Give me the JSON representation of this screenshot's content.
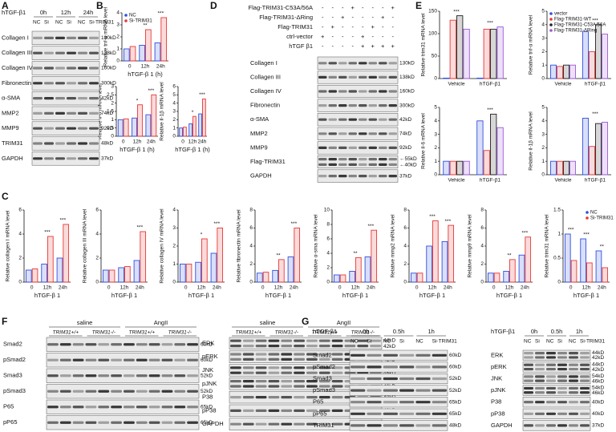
{
  "panel_labels": [
    "A",
    "B",
    "C",
    "D",
    "E",
    "F",
    "G"
  ],
  "chart_data": [
    {
      "type": "bar",
      "ylabel": "Relative tnf-α mRNA level",
      "xlabel": "hTGF-β 1 (h)",
      "categories": [
        "0",
        "12h",
        "24h"
      ],
      "ylim": [
        0,
        4
      ],
      "yticks": [
        0,
        1,
        2,
        3,
        4
      ],
      "legend": "upper left",
      "series": [
        {
          "name": "NC",
          "color": "#2f4fe0",
          "values": [
            1,
            1.3,
            1.5
          ]
        },
        {
          "name": "Si-TRIM31",
          "color": "#e53935",
          "values": [
            1.2,
            2.6,
            3.6
          ]
        }
      ],
      "annotations": [
        null,
        "**",
        "***"
      ]
    },
    {
      "type": "bar",
      "ylabel": "Relative il-6 mRNA level",
      "xlabel": "hTGF-β 1 (h)",
      "categories": [
        "0",
        "12h",
        "24h"
      ],
      "ylim": [
        0,
        3
      ],
      "yticks": [
        0,
        0.5,
        1,
        1.5,
        2,
        2.5,
        3
      ],
      "series": [
        {
          "color": "#2f4fe0",
          "values": [
            1,
            1.1,
            1.3
          ]
        },
        {
          "color": "#e53935",
          "values": [
            1.05,
            1.9,
            2.5
          ]
        }
      ],
      "annotations": [
        null,
        "*",
        "***"
      ]
    },
    {
      "type": "bar",
      "ylabel": "Relative il-1β mRNA level",
      "xlabel": "hTGF-β 1 (h)",
      "categories": [
        "0",
        "12h",
        "24h"
      ],
      "ylim": [
        0,
        6
      ],
      "yticks": [
        0,
        1,
        2,
        3,
        4,
        5,
        6
      ],
      "series": [
        {
          "color": "#2f4fe0",
          "values": [
            1,
            1.5,
            2.7
          ]
        },
        {
          "color": "#e53935",
          "values": [
            1.1,
            2.4,
            4.5
          ]
        }
      ],
      "annotations": [
        null,
        "*",
        "***"
      ]
    },
    {
      "type": "bar",
      "ylabel": "Relative collagen I mRNA level",
      "xlabel": "hTGF-β 1",
      "categories": [
        "0",
        "12h",
        "24h"
      ],
      "ylim": [
        0,
        6
      ],
      "yticks": [
        0,
        2,
        4,
        6
      ],
      "series": [
        {
          "color": "#2f4fe0",
          "values": [
            1,
            1.5,
            2
          ]
        },
        {
          "color": "#e53935",
          "values": [
            1.1,
            3.8,
            4.8
          ]
        }
      ],
      "annotations": [
        null,
        "***",
        "***"
      ]
    },
    {
      "type": "bar",
      "ylabel": "Relative collagen III mRNA level",
      "xlabel": "hTGF-β 1",
      "categories": [
        "0",
        "12h",
        "24h"
      ],
      "ylim": [
        0,
        6
      ],
      "yticks": [
        0,
        2,
        4,
        6
      ],
      "series": [
        {
          "color": "#2f4fe0",
          "values": [
            1,
            1.2,
            1.8
          ]
        },
        {
          "color": "#e53935",
          "values": [
            1,
            1.3,
            4.2
          ]
        }
      ],
      "annotations": [
        null,
        null,
        "***"
      ]
    },
    {
      "type": "bar",
      "ylabel": "Relative collagen IV mRNA level",
      "xlabel": "hTGF-β 1",
      "categories": [
        "0",
        "12h",
        "24h"
      ],
      "ylim": [
        0,
        4
      ],
      "yticks": [
        0,
        1,
        2,
        3,
        4
      ],
      "series": [
        {
          "color": "#2f4fe0",
          "values": [
            1,
            1.1,
            1.6
          ]
        },
        {
          "color": "#e53935",
          "values": [
            1,
            2.4,
            3
          ]
        }
      ],
      "annotations": [
        null,
        "*",
        "***"
      ]
    },
    {
      "type": "bar",
      "ylabel": "Relative fibronectin mRNA level",
      "xlabel": "hTGF-β 1",
      "categories": [
        "0",
        "12h",
        "24h"
      ],
      "ylim": [
        0,
        8
      ],
      "yticks": [
        0,
        2,
        4,
        6,
        8
      ],
      "series": [
        {
          "color": "#2f4fe0",
          "values": [
            1,
            1.3,
            2.8
          ]
        },
        {
          "color": "#e53935",
          "values": [
            1.1,
            2.5,
            6
          ]
        }
      ],
      "annotations": [
        null,
        "**",
        "***"
      ]
    },
    {
      "type": "bar",
      "ylabel": "Relative α-sma mRNA level",
      "xlabel": "hTGF-β 1",
      "categories": [
        "0",
        "12h",
        "24h"
      ],
      "ylim": [
        0,
        10
      ],
      "yticks": [
        0,
        2,
        4,
        6,
        8,
        10
      ],
      "series": [
        {
          "color": "#2f4fe0",
          "values": [
            1,
            1.5,
            3.5
          ]
        },
        {
          "color": "#e53935",
          "values": [
            1,
            3.4,
            7.2
          ]
        }
      ],
      "annotations": [
        null,
        "**",
        "***"
      ]
    },
    {
      "type": "bar",
      "ylabel": "Relative mmp2 mRNA level",
      "xlabel": "hTGF-β 1",
      "categories": [
        "0",
        "12h",
        "24h"
      ],
      "ylim": [
        0,
        8
      ],
      "yticks": [
        0,
        2,
        4,
        6,
        8
      ],
      "series": [
        {
          "color": "#2f4fe0",
          "values": [
            1,
            4,
            4.5
          ]
        },
        {
          "color": "#e53935",
          "values": [
            1,
            6.8,
            6.3
          ]
        }
      ],
      "annotations": [
        null,
        "***",
        "***"
      ]
    },
    {
      "type": "bar",
      "ylabel": "Relative mmp9 mRNA level",
      "xlabel": "hTGF-β 1",
      "categories": [
        "0",
        "12h",
        "24h"
      ],
      "ylim": [
        0,
        8
      ],
      "yticks": [
        0,
        2,
        4,
        6,
        8
      ],
      "series": [
        {
          "color": "#2f4fe0",
          "values": [
            1,
            1.2,
            3
          ]
        },
        {
          "color": "#e53935",
          "values": [
            1,
            2.5,
            5
          ]
        }
      ],
      "annotations": [
        null,
        "**",
        "***"
      ]
    },
    {
      "type": "bar",
      "ylabel": "Relative trim31 mRNA level",
      "xlabel": "hTGF-β 1",
      "categories": [
        "0",
        "12h",
        "24h"
      ],
      "ylim": [
        0,
        1.5
      ],
      "yticks": [
        0,
        0.5,
        1,
        1.5
      ],
      "legend": "upper right",
      "series": [
        {
          "name": "NC",
          "color": "#2f4fe0",
          "values": [
            1,
            0.9,
            0.65
          ]
        },
        {
          "name": "Si-TRIM31",
          "color": "#e53935",
          "values": [
            0.45,
            0.4,
            0.3
          ]
        }
      ],
      "annotations": [
        "***",
        "***",
        "**"
      ]
    },
    {
      "type": "bar",
      "ylabel": "Relative trim31 mRNA level",
      "categories": [
        "Vehicle",
        "hTGF-β1"
      ],
      "ylim": [
        0,
        150
      ],
      "yticks": [
        0,
        50,
        100,
        150
      ],
      "series": [
        {
          "color": "#2f4fe0",
          "values": [
            1,
            1
          ]
        },
        {
          "color": "#e53935",
          "values": [
            130,
            110
          ]
        },
        {
          "color": "#222222",
          "values": [
            140,
            110
          ]
        },
        {
          "color": "#9b59d6",
          "values": [
            110,
            115
          ]
        }
      ],
      "annotations": [
        "***",
        "***"
      ]
    },
    {
      "type": "bar",
      "ylabel": "Relative tnf-α mRNA level",
      "categories": [
        "Vehicle",
        "hTGF-β1"
      ],
      "ylim": [
        0,
        5
      ],
      "yticks": [
        0,
        1,
        2,
        3,
        4,
        5
      ],
      "legend": "upper left",
      "series": [
        {
          "name": "vector",
          "color": "#2f4fe0",
          "values": [
            1,
            3.5
          ]
        },
        {
          "name": "Flag-TRIM31-WT",
          "color": "#e53935",
          "values": [
            0.9,
            2
          ]
        },
        {
          "name": "Flag-TRIM31-C53A/56A",
          "color": "#222222",
          "values": [
            1,
            4
          ]
        },
        {
          "name": "Flag-TRIM31-ΔRing",
          "color": "#9b59d6",
          "values": [
            1,
            3.3
          ]
        }
      ],
      "annotations": [
        null,
        "***"
      ]
    },
    {
      "type": "bar",
      "ylabel": "Relative il-6 mRNA level",
      "categories": [
        "Vehicle",
        "hTGF-β1"
      ],
      "ylim": [
        0,
        5
      ],
      "yticks": [
        0,
        1,
        2,
        3,
        4,
        5
      ],
      "series": [
        {
          "color": "#2f4fe0",
          "values": [
            1,
            4
          ]
        },
        {
          "color": "#e53935",
          "values": [
            1,
            1.8
          ]
        },
        {
          "color": "#222222",
          "values": [
            1,
            4.5
          ]
        },
        {
          "color": "#9b59d6",
          "values": [
            1,
            3.5
          ]
        }
      ],
      "annotations": [
        null,
        "***"
      ]
    },
    {
      "type": "bar",
      "ylabel": "Relative il-1β mRNA level",
      "categories": [
        "Vehicle",
        "hTGF-β1"
      ],
      "ylim": [
        0,
        5
      ],
      "yticks": [
        0,
        1,
        2,
        3,
        4,
        5
      ],
      "series": [
        {
          "color": "#2f4fe0",
          "values": [
            1,
            4.2
          ]
        },
        {
          "color": "#e53935",
          "values": [
            1,
            2.1
          ]
        },
        {
          "color": "#222222",
          "values": [
            1,
            3.8
          ]
        },
        {
          "color": "#9b59d6",
          "values": [
            1,
            3.9
          ]
        }
      ],
      "annotations": [
        null,
        "***"
      ]
    }
  ],
  "blots": [
    {
      "header": "hTGF-β1",
      "groups": [
        "0h",
        "12h",
        "24h"
      ],
      "lanes": [
        "NC",
        "Si",
        "NC",
        "Si",
        "NC",
        "Si-TRIM31"
      ],
      "rows": [
        {
          "name": "Collagen I",
          "sizes": [
            "130kD"
          ]
        },
        {
          "name": "Collagen III",
          "sizes": [
            "138kD"
          ]
        },
        {
          "name": "Collagen IV",
          "sizes": [
            "160kD"
          ]
        },
        {
          "name": "Fibronectin",
          "sizes": [
            "300kD"
          ]
        },
        {
          "name": "α-SMA",
          "sizes": [
            "42kD"
          ]
        },
        {
          "name": "MMP2",
          "sizes": [
            "74kD"
          ]
        },
        {
          "name": "MMP9",
          "sizes": [
            "92kD"
          ]
        },
        {
          "name": "TRIM31",
          "sizes": [
            "48kD"
          ]
        },
        {
          "name": "GAPDH",
          "sizes": [
            "37kD"
          ]
        }
      ]
    },
    {
      "conditions": [
        {
          "label": "Flag-TRIM31-C53A/56A",
          "signs": [
            "-",
            "-",
            "-",
            "+",
            "-",
            "-",
            "-",
            "+"
          ]
        },
        {
          "label": "Flag-TRIM31-ΔRing",
          "signs": [
            "-",
            "-",
            "+",
            "-",
            "-",
            "-",
            "+",
            "-"
          ]
        },
        {
          "label": "Flag-TRIM31",
          "signs": [
            "-",
            "+",
            "-",
            "-",
            "-",
            "+",
            "-",
            "-"
          ]
        },
        {
          "label": "ctrl-vector",
          "signs": [
            "+",
            "-",
            "-",
            "-",
            "+",
            "-",
            "-",
            "-"
          ]
        },
        {
          "label": "hTGF β1",
          "signs": [
            "-",
            "-",
            "-",
            "-",
            "+",
            "+",
            "+",
            "+"
          ]
        }
      ],
      "rows": [
        {
          "name": "Collagen I",
          "sizes": [
            "130kD"
          ]
        },
        {
          "name": "Collagen III",
          "sizes": [
            "138kD"
          ]
        },
        {
          "name": "Collagen IV",
          "sizes": [
            "160kD"
          ]
        },
        {
          "name": "Fibronectin",
          "sizes": [
            "300kD"
          ]
        },
        {
          "name": "α-SMA",
          "sizes": [
            "42kD"
          ]
        },
        {
          "name": "MMP2",
          "sizes": [
            "74kD"
          ]
        },
        {
          "name": "MMP9",
          "sizes": [
            "92kD"
          ]
        },
        {
          "name": "Flag-TRIM31",
          "sizes": [
            "←55kD",
            "←40kD"
          ]
        },
        {
          "name": "GAPDH",
          "sizes": [
            "37kD"
          ]
        }
      ]
    },
    {
      "groups": [
        "saline",
        "AngII"
      ],
      "subgroups": [
        "TRIM31+/+",
        "TRIM31-/-",
        "TRIM31+/+",
        "TRIM31-/-"
      ],
      "rows": [
        {
          "name": "Smad2",
          "sizes": [
            "60kD"
          ]
        },
        {
          "name": "pSmad2",
          "sizes": [
            "60kD"
          ]
        },
        {
          "name": "Smad3",
          "sizes": [
            "52kD"
          ]
        },
        {
          "name": "pSmad3",
          "sizes": [
            "52kD"
          ]
        },
        {
          "name": "P65",
          "sizes": [
            "65kD"
          ]
        },
        {
          "name": "pP65",
          "sizes": [
            "65kD"
          ]
        }
      ]
    },
    {
      "groups": [
        "saline",
        "AngII"
      ],
      "subgroups": [
        "TRIM31+/+",
        "TRIM31-/-",
        "TRIM31+/+",
        "TRIM31-/-"
      ],
      "rows": [
        {
          "name": "ERK",
          "sizes": [
            "44kD",
            "42kD"
          ]
        },
        {
          "name": "pERK",
          "sizes": [
            "44kD",
            "42kD"
          ]
        },
        {
          "name": "JNK",
          "sizes": [
            "54kD",
            "46kD"
          ]
        },
        {
          "name": "pJNK",
          "sizes": [
            "54kD",
            "46kD"
          ]
        },
        {
          "name": "P38",
          "sizes": [
            "40kD"
          ]
        },
        {
          "name": "pP38",
          "sizes": [
            "40kD"
          ]
        },
        {
          "name": "GAPDH",
          "sizes": [
            "37kD"
          ]
        }
      ]
    },
    {
      "header": "hTGF-β1",
      "groups": [
        "0h",
        "0.5h",
        "1h"
      ],
      "lanes": [
        "NC",
        "Si",
        "NC",
        "Si",
        "NC",
        "Si-TRIM31"
      ],
      "rows": [
        {
          "name": "Smad2",
          "sizes": [
            "60kD"
          ]
        },
        {
          "name": "pSmad2",
          "sizes": [
            "60kD"
          ]
        },
        {
          "name": "Smad3",
          "sizes": [
            "52kD"
          ]
        },
        {
          "name": "pSmad3",
          "sizes": [
            "52kD"
          ]
        },
        {
          "name": "P65",
          "sizes": [
            "65kD"
          ]
        },
        {
          "name": "pP65",
          "sizes": [
            "65kD"
          ]
        },
        {
          "name": "TRIM31",
          "sizes": [
            "48kD"
          ]
        }
      ]
    },
    {
      "header": "hTGF-β1",
      "groups": [
        "0h",
        "0.5h",
        "1h"
      ],
      "lanes": [
        "NC",
        "Si",
        "NC",
        "Si",
        "NC",
        "Si-TRIM31"
      ],
      "rows": [
        {
          "name": "ERK",
          "sizes": [
            "44kD",
            "42kD"
          ]
        },
        {
          "name": "pERK",
          "sizes": [
            "44kD",
            "42kD"
          ]
        },
        {
          "name": "JNK",
          "sizes": [
            "54kD",
            "46kD"
          ]
        },
        {
          "name": "pJNK",
          "sizes": [
            "54kD",
            "46kD"
          ]
        },
        {
          "name": "P38",
          "sizes": [
            "40kD"
          ]
        },
        {
          "name": "pP38",
          "sizes": [
            "40kD"
          ]
        },
        {
          "name": "GAPDH",
          "sizes": [
            "37kD"
          ]
        }
      ]
    }
  ]
}
